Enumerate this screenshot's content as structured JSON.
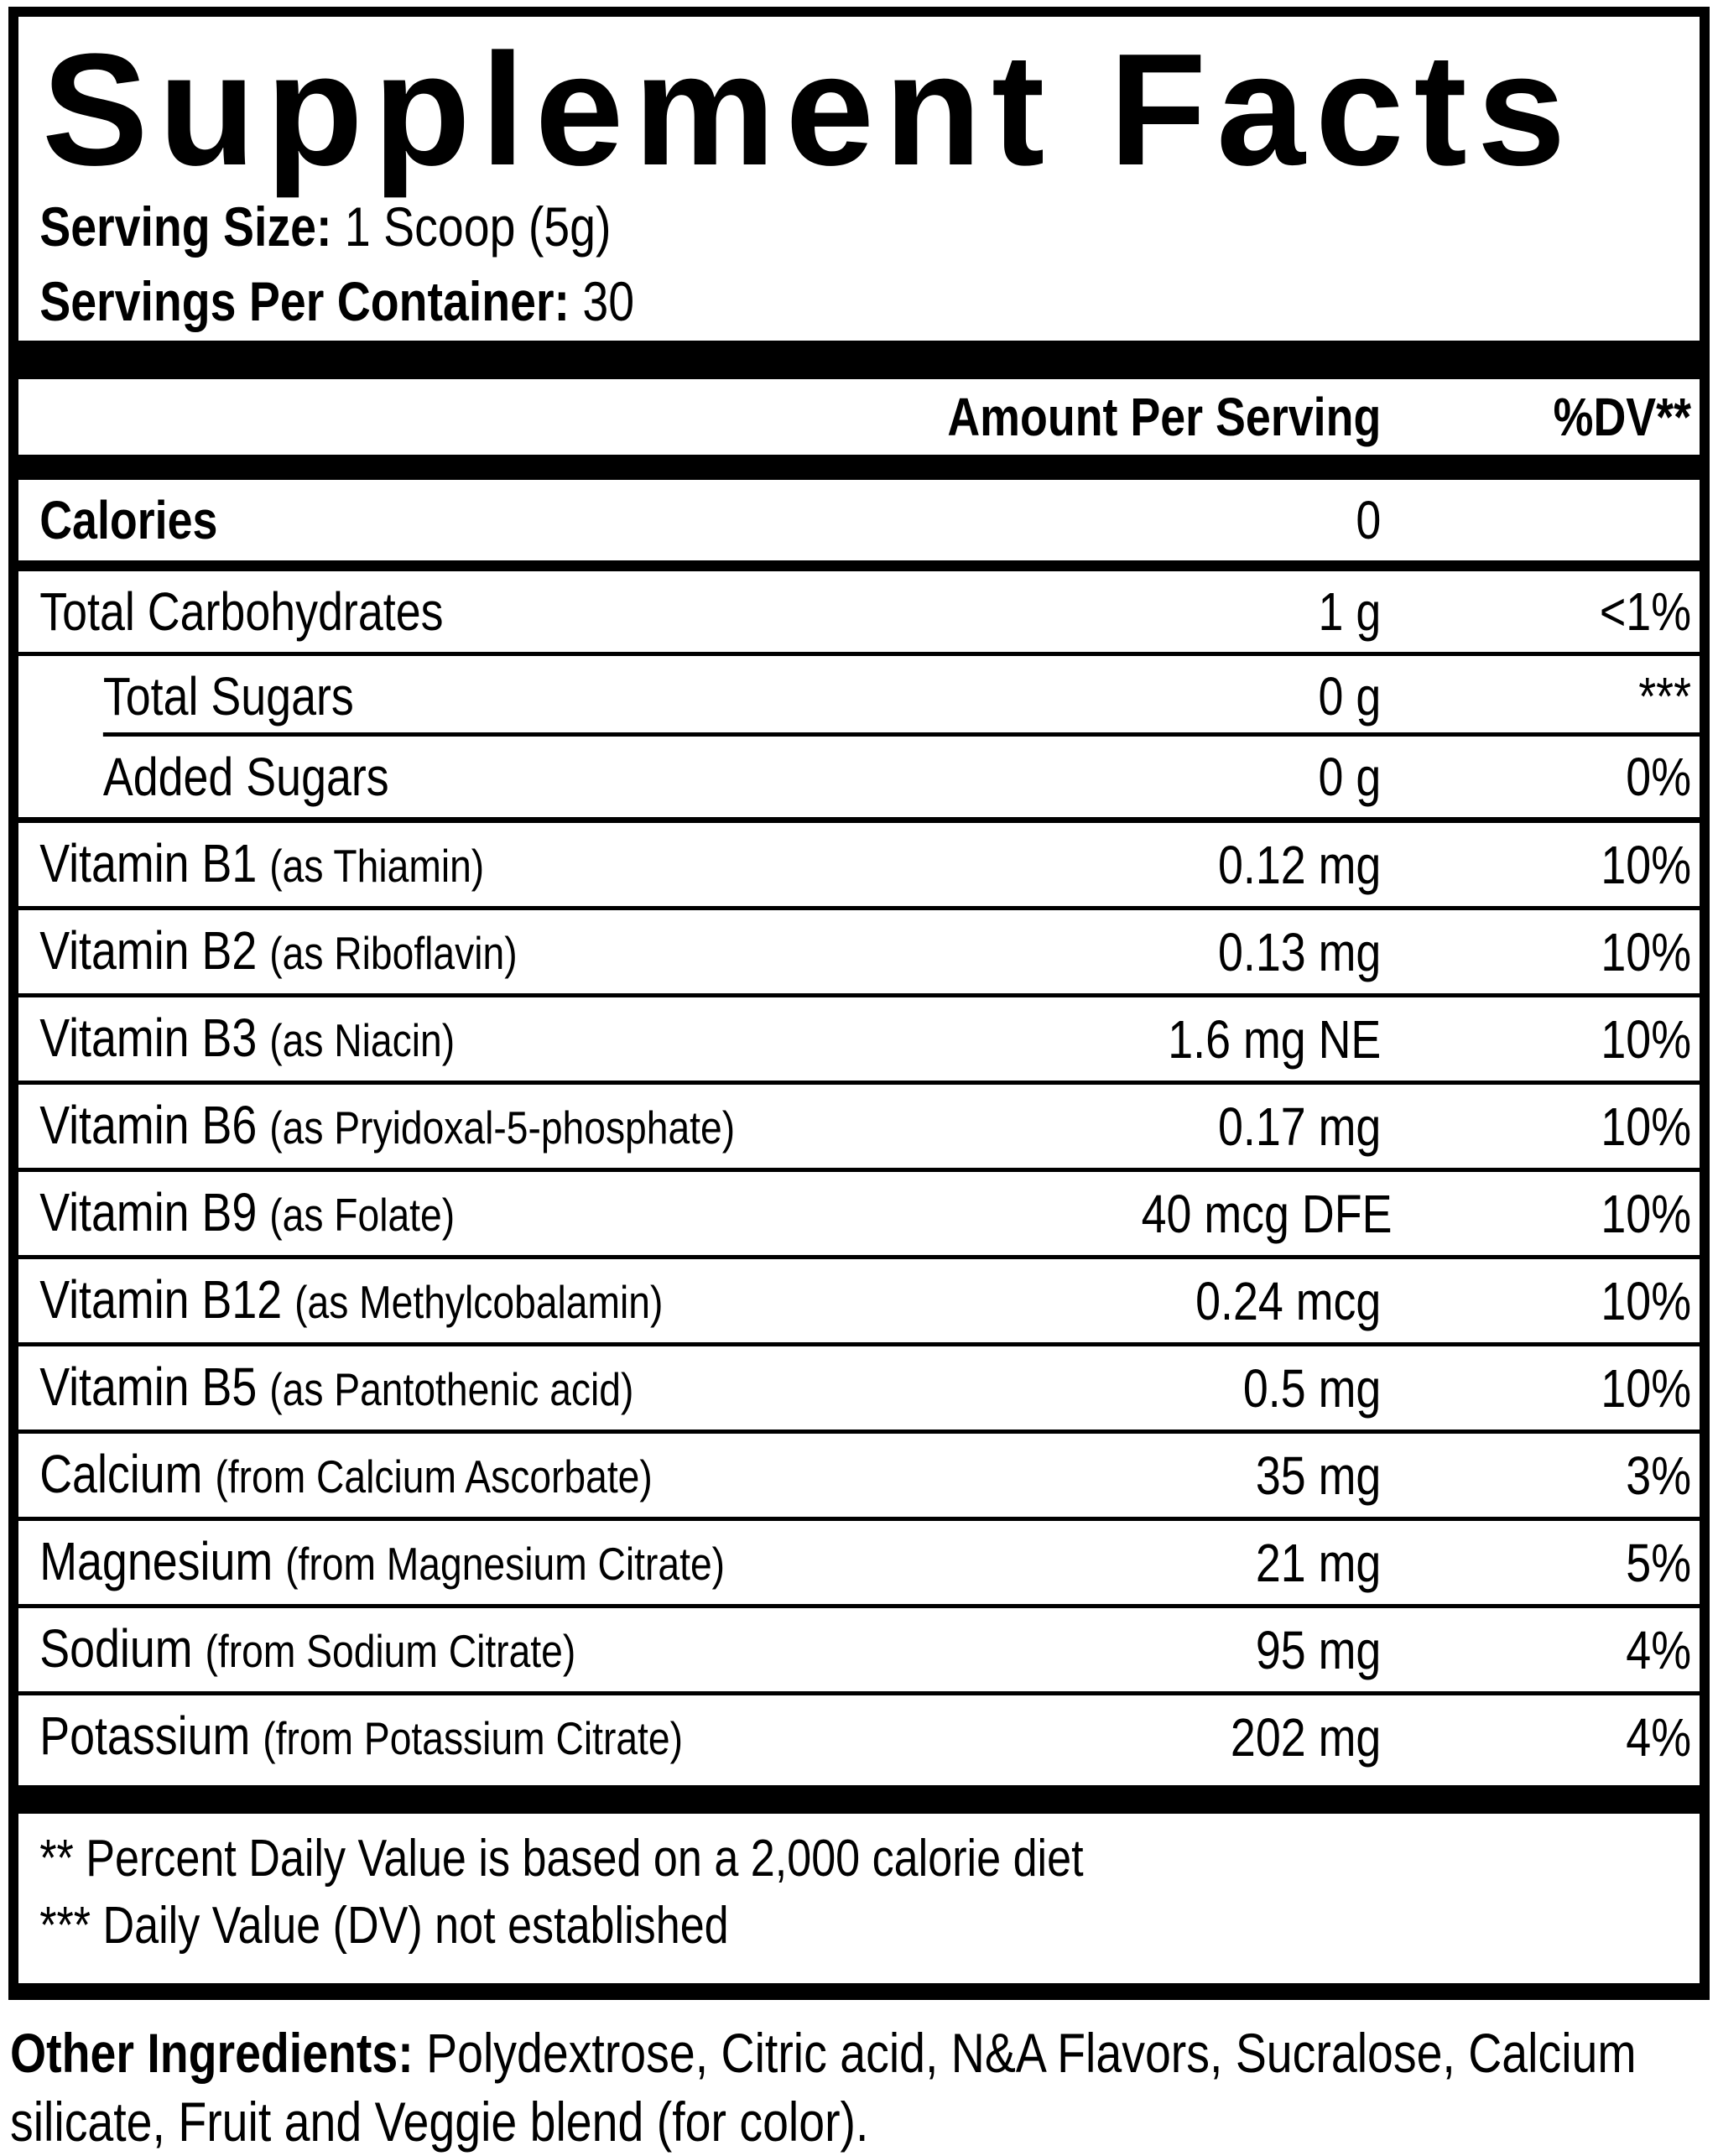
{
  "colors": {
    "text": "#000000",
    "background": "#ffffff"
  },
  "panel": {
    "title": "Supplement Facts",
    "serving_size_label": "Serving Size:",
    "serving_size_value": "1 Scoop (5g)",
    "servings_per_container_label": "Servings Per Container:",
    "servings_per_container_value": "30",
    "header": {
      "amount": "Amount Per Serving",
      "dv": "%DV**"
    },
    "rows": [
      {
        "name": "Calories",
        "detail": "",
        "amount": "0",
        "dv": "",
        "sub": false
      },
      {
        "name": "Total Carbohydrates",
        "detail": "",
        "amount": "1 g",
        "dv": "<1%",
        "sub": false
      },
      {
        "name": "Total Sugars",
        "detail": "",
        "amount": "0 g",
        "dv": "***",
        "sub": true
      },
      {
        "name": "Added Sugars",
        "detail": "",
        "amount": "0 g",
        "dv": "0%",
        "sub": true
      },
      {
        "name": "Vitamin B1",
        "detail": "(as Thiamin)",
        "amount": "0.12 mg",
        "dv": "10%",
        "sub": false
      },
      {
        "name": "Vitamin B2",
        "detail": "(as Riboflavin)",
        "amount": "0.13 mg",
        "dv": "10%",
        "sub": false
      },
      {
        "name": "Vitamin B3",
        "detail": "(as Niacin)",
        "amount": "1.6 mg NE",
        "dv": "10%",
        "sub": false
      },
      {
        "name": "Vitamin B6",
        "detail": "(as Pryidoxal-5-phosphate)",
        "amount": "0.17 mg",
        "dv": "10%",
        "sub": false
      },
      {
        "name": "Vitamin B9",
        "detail": "(as Folate)",
        "amount": "40 mcg DFE",
        "dv": "10%",
        "sub": false
      },
      {
        "name": "Vitamin B12",
        "detail": "(as Methylcobalamin)",
        "amount": "0.24 mcg",
        "dv": "10%",
        "sub": false
      },
      {
        "name": "Vitamin B5",
        "detail": "(as Pantothenic acid)",
        "amount": "0.5 mg",
        "dv": "10%",
        "sub": false
      },
      {
        "name": "Calcium",
        "detail": "(from Calcium Ascorbate)",
        "amount": "35 mg",
        "dv": "3%",
        "sub": false
      },
      {
        "name": "Magnesium",
        "detail": "(from Magnesium Citrate)",
        "amount": "21 mg",
        "dv": "5%",
        "sub": false
      },
      {
        "name": "Sodium",
        "detail": "(from Sodium Citrate)",
        "amount": "95 mg",
        "dv": "4%",
        "sub": false
      },
      {
        "name": "Potassium",
        "detail": "(from Potassium Citrate)",
        "amount": "202 mg",
        "dv": "4%",
        "sub": false
      }
    ],
    "footnotes": [
      "** Percent Daily Value is based on a 2,000 calorie diet",
      "*** Daily Value (DV) not established"
    ]
  },
  "other_ingredients": {
    "label": "Other Ingredients:",
    "text": "Polydextrose, Citric acid, N&A Flavors, Sucralose, Calcium silicate, Fruit and Veggie blend (for color)."
  }
}
